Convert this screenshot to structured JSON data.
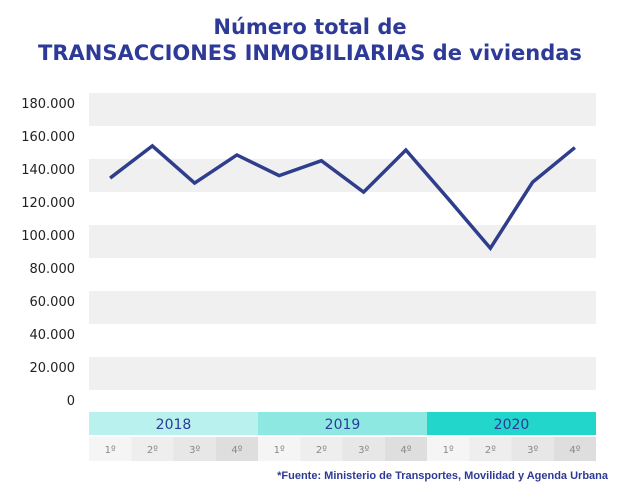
{
  "chart_data": {
    "type": "line",
    "title": "Número total de",
    "title_line2": "TRANSACCIONES INMOBILIARIAS de viviendas",
    "years": [
      "2018",
      "2019",
      "2020"
    ],
    "quarters": [
      "1º",
      "2º",
      "3º",
      "4º",
      "1º",
      "2º",
      "3º",
      "4º",
      "1º",
      "2º",
      "3º",
      "4º"
    ],
    "y_ticks": [
      "0",
      "20.000",
      "40.000",
      "60.000",
      "80.000",
      "100.000",
      "120.000",
      "140.000",
      "160.000",
      "180.000"
    ],
    "ylim": [
      0,
      180000
    ],
    "series": [
      {
        "values": [
          134500,
          154000,
          131500,
          148500,
          136000,
          145000,
          126000,
          151500,
          122000,
          92000,
          132000,
          153000
        ]
      }
    ],
    "line_color": "#2f3e8c",
    "year_colors": [
      "#b8f1ee",
      "#8ee8e2",
      "#22d6cc"
    ],
    "grid": "alternating horizontal bands",
    "source": "*Fuente: Ministerio de Transportes, Movilidad y Agenda Urbana"
  }
}
